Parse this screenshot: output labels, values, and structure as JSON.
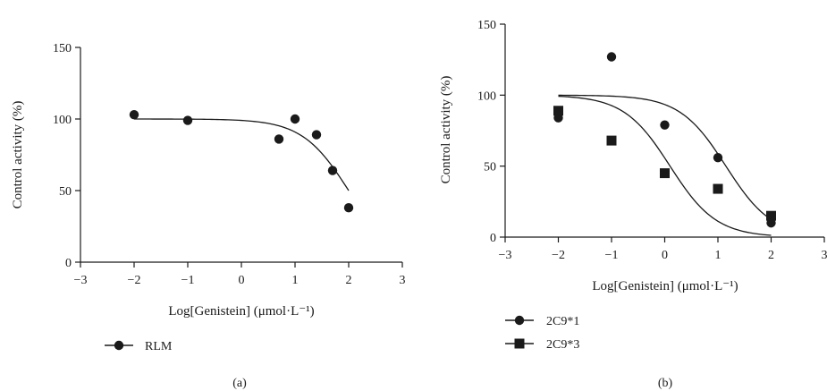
{
  "chart_data": [
    {
      "type": "scatter",
      "panel_label": "(a)",
      "xlabel": "Log[Genistein] (μmol·L⁻¹)",
      "ylabel": "Control activity (%)",
      "xlim": [
        -3,
        3
      ],
      "ylim": [
        0,
        150
      ],
      "xticks": [
        -3,
        -2,
        -1,
        0,
        1,
        2,
        3
      ],
      "yticks": [
        0,
        50,
        100,
        150
      ],
      "series": [
        {
          "name": "RLM",
          "marker": "circle",
          "color": "#1a1a1a",
          "x": [
            -2,
            -1,
            0.7,
            1,
            1.4,
            1.7,
            2
          ],
          "y": [
            103,
            99,
            86,
            100,
            89,
            64,
            38
          ],
          "fit": {
            "logIC50": 2.0,
            "hill": 1.0,
            "top": 100,
            "bottom": 0,
            "xrange": [
              -2,
              2
            ]
          }
        }
      ],
      "legend": "bottom-left"
    },
    {
      "type": "scatter",
      "panel_label": "(b)",
      "xlabel": "Log[Genistein] (μmol·L⁻¹)",
      "ylabel": "Control activity (%)",
      "xlim": [
        -3,
        3
      ],
      "ylim": [
        0,
        150
      ],
      "xticks": [
        -3,
        -2,
        -1,
        0,
        1,
        2,
        3
      ],
      "yticks": [
        0,
        50,
        100,
        150
      ],
      "series": [
        {
          "name": "2C9*1",
          "marker": "circle",
          "color": "#1a1a1a",
          "x": [
            -2,
            -1,
            0,
            1,
            2
          ],
          "y": [
            84,
            127,
            79,
            56,
            10
          ],
          "fit": {
            "logIC50": 1.15,
            "hill": 1.0,
            "top": 100,
            "bottom": 0,
            "xrange": [
              -2,
              2
            ]
          }
        },
        {
          "name": "2C9*3",
          "marker": "square",
          "color": "#1a1a1a",
          "x": [
            -2,
            -1,
            0,
            1,
            2
          ],
          "y": [
            89,
            68,
            45,
            34,
            15
          ],
          "fit": {
            "logIC50": 0.1,
            "hill": 1.0,
            "top": 100,
            "bottom": 0,
            "xrange": [
              -2,
              2
            ]
          }
        }
      ],
      "legend": "bottom-left"
    }
  ]
}
